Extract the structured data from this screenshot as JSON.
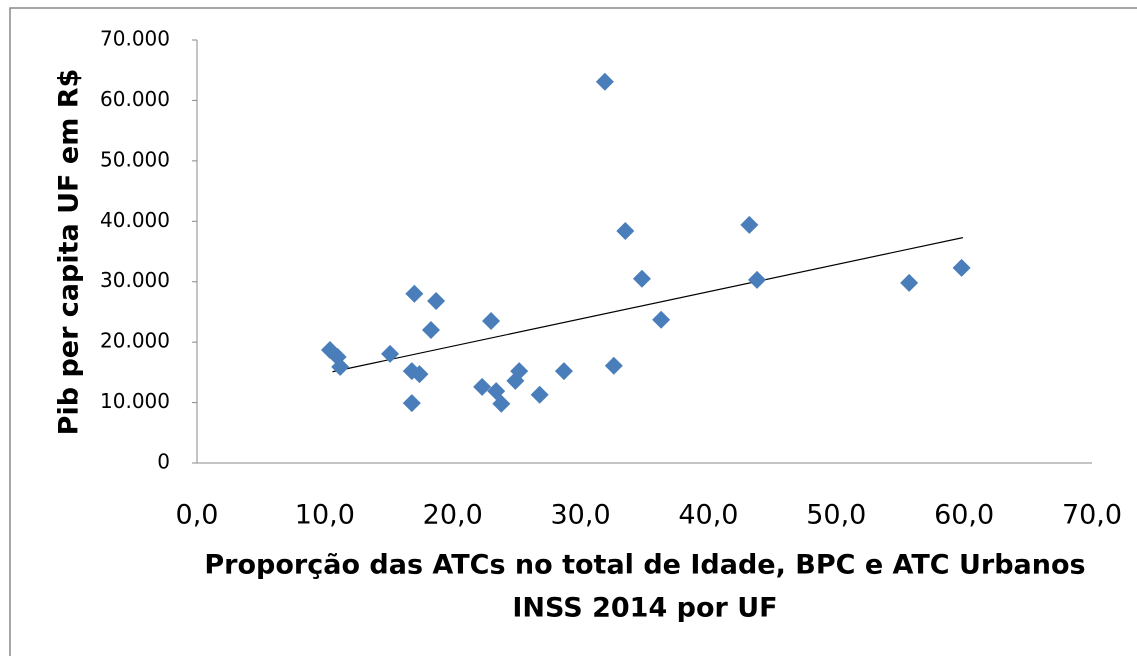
{
  "chart_data": {
    "type": "scatter",
    "xlabel": [
      "Proporção das ATCs no total de Idade, BPC e ATC Urbanos",
      "INSS 2014 por UF"
    ],
    "ylabel": "Pib per capita UF em R$",
    "series": [
      {
        "color": "#4a7ebb",
        "x": [
          10.4,
          11.0,
          11.2,
          15.1,
          17.0,
          16.8,
          17.4,
          16.8,
          18.3,
          18.7,
          22.3,
          23.0,
          23.4,
          23.8,
          24.9,
          25.2,
          26.8,
          28.7,
          31.9,
          32.6,
          33.5,
          34.8,
          36.3,
          43.2,
          43.8,
          55.7,
          59.8
        ],
        "values": [
          18700,
          17550,
          15900,
          18050,
          28000,
          15200,
          14700,
          9900,
          22000,
          26800,
          12600,
          23500,
          11900,
          9800,
          13600,
          15200,
          11300,
          15200,
          63100,
          16100,
          38400,
          30500,
          23700,
          39400,
          30300,
          29800,
          32300
        ]
      }
    ],
    "trendline": {
      "x": [
        10.6,
        59.9
      ],
      "values": [
        15100,
        37300
      ],
      "color": "#000000"
    },
    "xlim": [
      0,
      70
    ],
    "ylim": [
      0,
      70000
    ],
    "xticks": [
      {
        "value": 0,
        "label": "0,0"
      },
      {
        "value": 10,
        "label": "10,0"
      },
      {
        "value": 20,
        "label": "20,0"
      },
      {
        "value": 30,
        "label": "30,0"
      },
      {
        "value": 40,
        "label": "40,0"
      },
      {
        "value": 50,
        "label": "50,0"
      },
      {
        "value": 60,
        "label": "60,0"
      },
      {
        "value": 70,
        "label": "70,0"
      }
    ],
    "yticks": [
      0,
      {
        "value": 10000,
        "label": "10.000"
      },
      {
        "value": 20000,
        "label": "20.000"
      },
      {
        "value": 30000,
        "label": "30.000"
      },
      {
        "value": 40000,
        "label": "40.000"
      },
      {
        "value": 50000,
        "label": "50.000"
      },
      {
        "value": 60000,
        "label": "60.000"
      },
      {
        "value": 70000,
        "label": "70.000"
      }
    ],
    "grid": false
  }
}
